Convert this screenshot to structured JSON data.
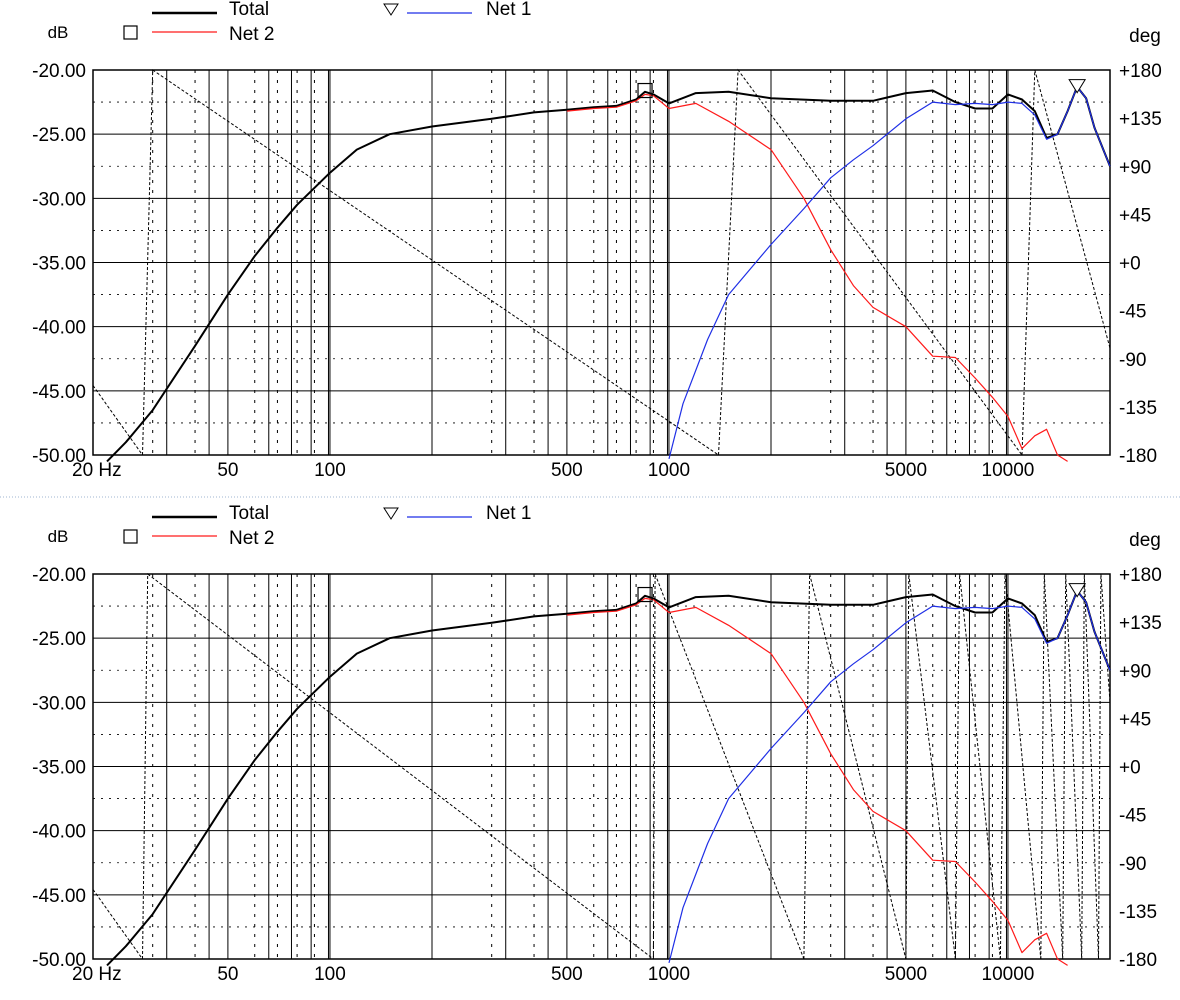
{
  "colors": {
    "total": "#000000",
    "net1": "#1f2fe6",
    "net2": "#ff1a1a",
    "phase": "#000000",
    "grid": "#000000",
    "divider": "#9fb4d0"
  },
  "chart_data": [
    {
      "type": "line",
      "xscale": "log",
      "xlim": [
        20,
        20000
      ],
      "ylim": [
        -50,
        -20
      ],
      "y2lim": [
        -180,
        180
      ],
      "xunit": "Hz",
      "yunit": "dB",
      "y2unit": "deg",
      "y_ticks": [
        "-20.00",
        "-25.00",
        "-30.00",
        "-35.00",
        "-40.00",
        "-45.00",
        "-50.00"
      ],
      "y2_ticks": [
        "+180",
        "+135",
        "+90",
        "+45",
        "+0",
        "-45",
        "-90",
        "-135",
        "-180"
      ],
      "x_ticks": [
        {
          "label": "20 Hz",
          "value": 20
        },
        {
          "label": "50",
          "value": 50
        },
        {
          "label": "100",
          "value": 100
        },
        {
          "label": "500",
          "value": 500
        },
        {
          "label": "1000",
          "value": 1000
        },
        {
          "label": "5000",
          "value": 5000
        },
        {
          "label": "10000",
          "value": 10000
        }
      ],
      "legend": [
        {
          "name": "Total",
          "marker": ""
        },
        {
          "name": "Net 2",
          "marker": "square"
        },
        {
          "name": "Net 1",
          "marker": "triangle-down"
        }
      ],
      "series": [
        {
          "name": "Total",
          "color": "#000000",
          "x": [
            22,
            25,
            30,
            40,
            50,
            60,
            70,
            80,
            100,
            120,
            150,
            200,
            300,
            400,
            500,
            600,
            700,
            800,
            850,
            900,
            1000,
            1200,
            1500,
            2000,
            3000,
            4000,
            5000,
            6000,
            7000,
            8000,
            9000,
            10000,
            11000,
            12000,
            13000,
            14000,
            15000,
            16000,
            17000,
            18000,
            20000
          ],
          "y": [
            -50.5,
            -49,
            -46.5,
            -41.5,
            -37.5,
            -34.5,
            -32.3,
            -30.5,
            -28,
            -26.2,
            -25,
            -24.4,
            -23.8,
            -23.3,
            -23.1,
            -22.9,
            -22.8,
            -22.3,
            -21.7,
            -21.9,
            -22.6,
            -21.8,
            -21.7,
            -22.2,
            -22.4,
            -22.4,
            -21.8,
            -21.6,
            -22.5,
            -23.0,
            -23.0,
            -21.9,
            -22.3,
            -23.2,
            -25.3,
            -25.0,
            -23.2,
            -21.3,
            -22.2,
            -24.5,
            -27.5
          ]
        },
        {
          "name": "Net 2",
          "color": "#ff1a1a",
          "x": [
            500,
            600,
            700,
            800,
            850,
            900,
            1000,
            1200,
            1500,
            2000,
            2500,
            3000,
            3500,
            4000,
            5000,
            6000,
            7000,
            8000,
            9000,
            10000,
            11000,
            12000,
            13000,
            14000,
            15000
          ],
          "y": [
            -23.2,
            -23.0,
            -22.9,
            -22.4,
            -21.9,
            -22.0,
            -23.0,
            -22.6,
            -24.0,
            -26.2,
            -30.0,
            -34.0,
            -36.8,
            -38.5,
            -40.0,
            -42.3,
            -42.4,
            -44.0,
            -45.5,
            -47.0,
            -49.5,
            -48.5,
            -48.0,
            -50.0,
            -50.5
          ]
        },
        {
          "name": "Net 1",
          "color": "#1f2fe6",
          "x": [
            1000,
            1100,
            1300,
            1500,
            2000,
            2500,
            3000,
            3500,
            4000,
            5000,
            6000,
            7000,
            8000,
            9000,
            10000,
            11000,
            12000,
            13000,
            14000,
            15000,
            16000,
            17000,
            18000,
            20000
          ],
          "y": [
            -50.3,
            -46.0,
            -41.0,
            -37.5,
            -33.6,
            -30.8,
            -28.4,
            -27.0,
            -25.9,
            -23.8,
            -22.5,
            -22.7,
            -22.6,
            -22.7,
            -22.5,
            -22.6,
            -23.5,
            -25.4,
            -25.0,
            -23.2,
            -21.3,
            -22.2,
            -24.5,
            -27.5
          ]
        }
      ],
      "phase_series": [
        {
          "name": "phase",
          "x": [
            20,
            28
          ],
          "y": [
            -115,
            -180
          ]
        },
        {
          "name": "phase",
          "x": [
            28,
            30,
            1400
          ],
          "y": [
            -180,
            180,
            -180
          ]
        },
        {
          "name": "phase",
          "x": [
            1400,
            1600,
            11000
          ],
          "y": [
            -180,
            180,
            -180
          ]
        },
        {
          "name": "phase",
          "x": [
            11000,
            12000,
            20000
          ],
          "y": [
            -180,
            180,
            -80
          ]
        }
      ]
    },
    {
      "type": "line",
      "xscale": "log",
      "xlim": [
        20,
        20000
      ],
      "ylim": [
        -50,
        -20
      ],
      "y2lim": [
        -180,
        180
      ],
      "xunit": "Hz",
      "yunit": "dB",
      "y2unit": "deg",
      "y_ticks": [
        "-20.00",
        "-25.00",
        "-30.00",
        "-35.00",
        "-40.00",
        "-45.00",
        "-50.00"
      ],
      "y2_ticks": [
        "+180",
        "+135",
        "+90",
        "+45",
        "+0",
        "-45",
        "-90",
        "-135",
        "-180"
      ],
      "x_ticks": [
        {
          "label": "20 Hz",
          "value": 20
        },
        {
          "label": "50",
          "value": 50
        },
        {
          "label": "100",
          "value": 100
        },
        {
          "label": "500",
          "value": 500
        },
        {
          "label": "1000",
          "value": 1000
        },
        {
          "label": "5000",
          "value": 5000
        },
        {
          "label": "10000",
          "value": 10000
        }
      ],
      "legend": [
        {
          "name": "Total",
          "marker": ""
        },
        {
          "name": "Net 2",
          "marker": "square"
        },
        {
          "name": "Net 1",
          "marker": "triangle-down"
        }
      ],
      "series": [
        {
          "name": "Total",
          "color": "#000000",
          "x": [
            22,
            25,
            30,
            40,
            50,
            60,
            70,
            80,
            100,
            120,
            150,
            200,
            300,
            400,
            500,
            600,
            700,
            800,
            850,
            900,
            1000,
            1200,
            1500,
            2000,
            3000,
            4000,
            5000,
            6000,
            7000,
            8000,
            9000,
            10000,
            11000,
            12000,
            13000,
            14000,
            15000,
            16000,
            17000,
            18000,
            20000
          ],
          "y": [
            -50.5,
            -49,
            -46.5,
            -41.5,
            -37.5,
            -34.5,
            -32.3,
            -30.5,
            -28,
            -26.2,
            -25,
            -24.4,
            -23.8,
            -23.3,
            -23.1,
            -22.9,
            -22.8,
            -22.3,
            -21.7,
            -21.9,
            -22.6,
            -21.8,
            -21.7,
            -22.2,
            -22.4,
            -22.4,
            -21.8,
            -21.6,
            -22.5,
            -23.0,
            -23.0,
            -21.9,
            -22.3,
            -23.2,
            -25.3,
            -25.0,
            -23.2,
            -21.3,
            -22.2,
            -24.5,
            -27.5
          ]
        },
        {
          "name": "Net 2",
          "color": "#ff1a1a",
          "x": [
            500,
            600,
            700,
            800,
            850,
            900,
            1000,
            1200,
            1500,
            2000,
            2500,
            3000,
            3500,
            4000,
            5000,
            6000,
            7000,
            8000,
            9000,
            10000,
            11000,
            12000,
            13000,
            14000,
            15000
          ],
          "y": [
            -23.2,
            -23.0,
            -22.9,
            -22.4,
            -21.9,
            -22.0,
            -23.0,
            -22.6,
            -24.0,
            -26.2,
            -30.0,
            -34.0,
            -36.8,
            -38.5,
            -40.0,
            -42.3,
            -42.4,
            -44.0,
            -45.5,
            -47.0,
            -49.5,
            -48.5,
            -48.0,
            -50.0,
            -50.5
          ]
        },
        {
          "name": "Net 1",
          "color": "#1f2fe6",
          "x": [
            1000,
            1100,
            1300,
            1500,
            2000,
            2500,
            3000,
            3500,
            4000,
            5000,
            6000,
            7000,
            8000,
            9000,
            10000,
            11000,
            12000,
            13000,
            14000,
            15000,
            16000,
            17000,
            18000,
            20000
          ],
          "y": [
            -50.3,
            -46.0,
            -41.0,
            -37.5,
            -33.6,
            -30.8,
            -28.4,
            -27.0,
            -25.9,
            -23.8,
            -22.5,
            -22.7,
            -22.6,
            -22.7,
            -22.5,
            -22.6,
            -23.5,
            -25.4,
            -25.0,
            -23.2,
            -21.3,
            -22.2,
            -24.5,
            -27.5
          ]
        }
      ],
      "phase_series": [
        {
          "name": "phase",
          "x": [
            20,
            28
          ],
          "y": [
            -115,
            -180
          ]
        },
        {
          "name": "phase",
          "x": [
            28,
            29,
            900
          ],
          "y": [
            -180,
            180,
            -180
          ]
        },
        {
          "name": "phase",
          "x": [
            900,
            910,
            2500
          ],
          "y": [
            -180,
            180,
            -180
          ]
        },
        {
          "name": "phase",
          "x": [
            2500,
            2600,
            5000
          ],
          "y": [
            -180,
            180,
            -180
          ]
        },
        {
          "name": "phase",
          "x": [
            5000,
            5100,
            7000
          ],
          "y": [
            -180,
            180,
            -180
          ]
        },
        {
          "name": "phase",
          "x": [
            7000,
            7200,
            9500
          ],
          "y": [
            -180,
            180,
            -180
          ]
        },
        {
          "name": "phase",
          "x": [
            9500,
            9800,
            12500
          ],
          "y": [
            -180,
            180,
            -180
          ]
        },
        {
          "name": "phase",
          "x": [
            12500,
            12800,
            14500
          ],
          "y": [
            -180,
            180,
            -180
          ]
        },
        {
          "name": "phase",
          "x": [
            14500,
            14800,
            16500
          ],
          "y": [
            -180,
            180,
            -180
          ]
        },
        {
          "name": "phase",
          "x": [
            16500,
            16800,
            18500
          ],
          "y": [
            -180,
            180,
            -180
          ]
        },
        {
          "name": "phase",
          "x": [
            18500,
            18800,
            20000
          ],
          "y": [
            -180,
            180,
            60
          ]
        }
      ]
    }
  ]
}
